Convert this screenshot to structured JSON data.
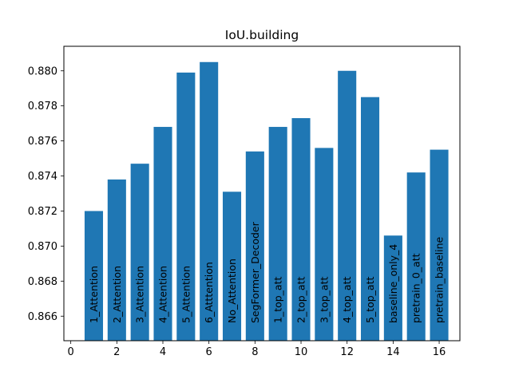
{
  "chart_data": {
    "type": "bar",
    "title": "IoU.building",
    "xlabel": "",
    "ylabel": "",
    "xlim": [
      -0.3,
      16.9
    ],
    "ylim": [
      0.8646,
      0.8814
    ],
    "xticks": [
      "0",
      "2",
      "4",
      "6",
      "8",
      "10",
      "12",
      "14",
      "16"
    ],
    "yticks": [
      "0.866",
      "0.868",
      "0.870",
      "0.872",
      "0.874",
      "0.876",
      "0.878",
      "0.880"
    ],
    "x": [
      1,
      2,
      3,
      4,
      5,
      6,
      7,
      8,
      9,
      10,
      11,
      12,
      13,
      14,
      15,
      16
    ],
    "categories": [
      "1_Attention",
      "2_Attention",
      "3_Attention",
      "4_Attention",
      "5_Attention",
      "6_Atttention",
      "No_Attention",
      "SegFormer_Decoder",
      "1_top_att",
      "2_top_att",
      "3_top_att",
      "4_top_att",
      "5_top_att",
      "baseline_only_4",
      "pretrain_0_att",
      "pretrain_baseline"
    ],
    "values": [
      0.872,
      0.8738,
      0.8747,
      0.8768,
      0.8799,
      0.8805,
      0.8731,
      0.8754,
      0.8768,
      0.8773,
      0.8756,
      0.88,
      0.8785,
      0.8706,
      0.8742,
      0.8755
    ],
    "bar_color": "#1f77b4",
    "grid": false,
    "legend": "none"
  }
}
